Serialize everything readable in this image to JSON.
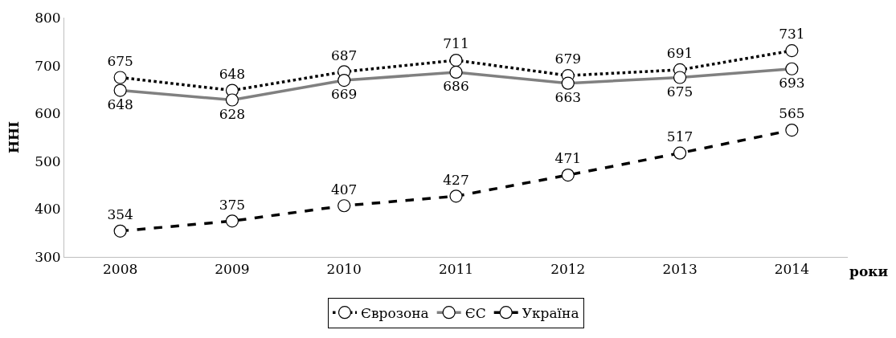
{
  "chart_data": {
    "type": "line",
    "xlabel": "роки",
    "ylabel": "HHI",
    "categories": [
      "2008",
      "2009",
      "2010",
      "2011",
      "2012",
      "2013",
      "2014"
    ],
    "series": [
      {
        "name": "Єврозона",
        "color": "#000000",
        "line_style": "dotted",
        "values": [
          675,
          648,
          687,
          711,
          679,
          691,
          731
        ]
      },
      {
        "name": "ЄС",
        "color": "#808080",
        "line_style": "solid",
        "values": [
          648,
          628,
          669,
          686,
          663,
          675,
          693
        ]
      },
      {
        "name": "Україна",
        "color": "#000000",
        "line_style": "dashed",
        "values": [
          354,
          375,
          407,
          427,
          471,
          517,
          565
        ]
      }
    ],
    "ylim": [
      300,
      800
    ],
    "yticks": [
      300,
      400,
      500,
      600,
      700,
      800
    ],
    "grid": false,
    "legend": "bottom",
    "marker": "circle",
    "data_labels": true
  }
}
